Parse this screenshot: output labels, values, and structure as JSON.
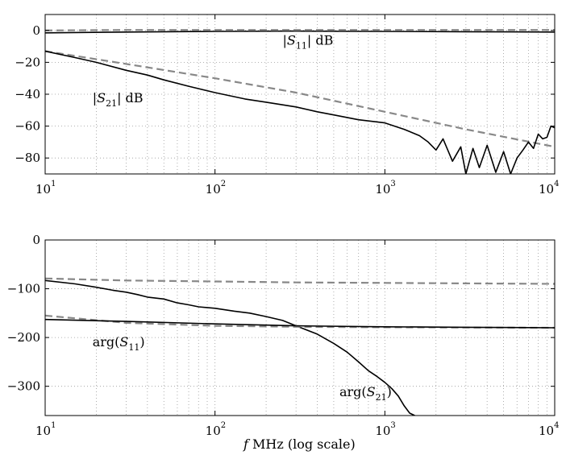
{
  "chart_data": [
    {
      "type": "line",
      "xscale": "log",
      "xlim": [
        10,
        10000
      ],
      "ylim": [
        -90,
        10
      ],
      "grid": true,
      "x_ticks": [
        {
          "base": "10",
          "exp": "1"
        },
        {
          "base": "10",
          "exp": "2"
        },
        {
          "base": "10",
          "exp": "3"
        },
        {
          "base": "10",
          "exp": "4"
        }
      ],
      "y_ticks": [
        "0",
        "−20",
        "−40",
        "−60",
        "−80"
      ],
      "y_tick_values": [
        0,
        -20,
        -40,
        -60,
        -80
      ],
      "annotations": [
        {
          "var": "S",
          "sub": "11",
          "prefix": "|",
          "suffix": "| dB",
          "at": [
            250,
            -9
          ]
        },
        {
          "var": "S",
          "sub": "21",
          "prefix": "|",
          "suffix": "| dB",
          "at": [
            19,
            -45
          ]
        }
      ],
      "series": [
        {
          "style": "solid",
          "color": "#000000",
          "x": [
            10,
            30,
            100,
            300,
            1000,
            3000,
            10000
          ],
          "y": [
            -1.5,
            -1,
            -0.6,
            -0.4,
            -0.6,
            -0.8,
            -1
          ]
        },
        {
          "style": "dashed",
          "color": "#888888",
          "x": [
            10,
            30,
            100,
            1000,
            10000
          ],
          "y": [
            0,
            0.3,
            0.3,
            0.3,
            0.3
          ]
        },
        {
          "style": "dashed",
          "color": "#888888",
          "x": [
            10,
            30,
            100,
            300,
            1000,
            3000,
            10000
          ],
          "y": [
            -13,
            -21,
            -30,
            -39,
            -51,
            -62,
            -73
          ]
        },
        {
          "style": "solid",
          "color": "#000000",
          "x": [
            10,
            15,
            20,
            30,
            40,
            50,
            70,
            100,
            150,
            200,
            300,
            400,
            500,
            700,
            1000,
            1300,
            1600,
            1800,
            2000,
            2200,
            2500,
            2800,
            3000,
            3300,
            3600,
            4000,
            4500,
            5000,
            5500,
            6000,
            6500,
            7000,
            7500,
            8000,
            8500,
            9000,
            9500,
            10000
          ],
          "y": [
            -13,
            -17,
            -20,
            -25,
            -28,
            -31,
            -35,
            -39,
            -43,
            -45,
            -48,
            -51,
            -53,
            -56,
            -58,
            -62,
            -66,
            -70,
            -75,
            -68,
            -82,
            -73,
            -90,
            -74,
            -86,
            -72,
            -89,
            -76,
            -90,
            -80,
            -75,
            -70,
            -74,
            -65,
            -68,
            -67,
            -60,
            -61
          ]
        }
      ]
    },
    {
      "type": "line",
      "xscale": "log",
      "xlim": [
        10,
        10000
      ],
      "ylim": [
        -360,
        0
      ],
      "grid": true,
      "x_ticks": [
        {
          "base": "10",
          "exp": "1"
        },
        {
          "base": "10",
          "exp": "2"
        },
        {
          "base": "10",
          "exp": "3"
        },
        {
          "base": "10",
          "exp": "4"
        }
      ],
      "y_ticks": [
        "0",
        "−100",
        "−200",
        "−300"
      ],
      "y_tick_values": [
        0,
        -100,
        -200,
        -300
      ],
      "xlabel": {
        "var": "f",
        "text": " MHz (log scale)"
      },
      "annotations": [
        {
          "var": "S",
          "sub": "11",
          "prefix": "arg(",
          "suffix": ")",
          "at": [
            19,
            -218
          ]
        },
        {
          "var": "S",
          "sub": "21",
          "prefix": "arg(",
          "suffix": ")",
          "at": [
            540,
            -320
          ]
        }
      ],
      "series": [
        {
          "style": "dashed",
          "color": "#888888",
          "x": [
            10,
            30,
            100,
            300,
            1000,
            3000,
            10000
          ],
          "y": [
            -79,
            -83,
            -85,
            -87,
            -88,
            -89,
            -90
          ]
        },
        {
          "style": "solid",
          "color": "#000000",
          "x": [
            10,
            15,
            20,
            25,
            30,
            35,
            40,
            50,
            60,
            70,
            80,
            100,
            130,
            160,
            200,
            250,
            300,
            400,
            500,
            600,
            700,
            800,
            900,
            1000,
            1100,
            1200,
            1300,
            1400,
            1500
          ],
          "y": [
            -83,
            -90,
            -97,
            -103,
            -107,
            -112,
            -117,
            -121,
            -129,
            -133,
            -137,
            -140,
            -146,
            -150,
            -157,
            -165,
            -176,
            -193,
            -212,
            -230,
            -250,
            -268,
            -280,
            -292,
            -305,
            -320,
            -340,
            -355,
            -360
          ]
        },
        {
          "style": "dashed",
          "color": "#888888",
          "x": [
            10,
            30,
            100,
            300,
            1000,
            10000
          ],
          "y": [
            -155,
            -170,
            -176,
            -178,
            -179,
            -180
          ]
        },
        {
          "style": "solid",
          "color": "#000000",
          "x": [
            10,
            30,
            100,
            300,
            1000,
            3000,
            10000
          ],
          "y": [
            -163,
            -167,
            -172,
            -176,
            -178,
            -179,
            -180
          ]
        }
      ]
    }
  ]
}
